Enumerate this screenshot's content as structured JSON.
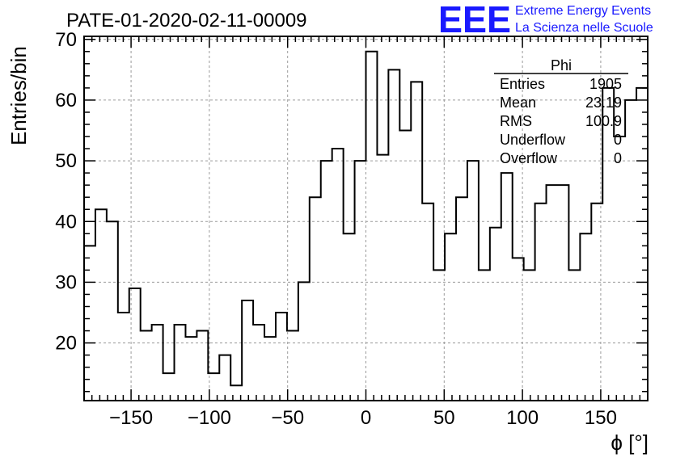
{
  "chart_data": {
    "type": "bar",
    "title": "PATE-01-2020-02-11-00009",
    "xlabel": "ϕ [°]",
    "ylabel": "Entries/bin",
    "xlim": [
      -180,
      180
    ],
    "ylim": [
      10.5,
      70.5
    ],
    "grid": true,
    "x_ticks": [
      -150,
      -100,
      -50,
      0,
      50,
      100,
      150
    ],
    "x_tick_labels": [
      "−150",
      "−100",
      "−50",
      "0",
      "50",
      "100",
      "150"
    ],
    "y_ticks": [
      20,
      30,
      40,
      50,
      60,
      70
    ],
    "y_tick_labels": [
      "20",
      "30",
      "40",
      "50",
      "60",
      "70"
    ],
    "bin_edges_start": -180,
    "bin_width": 7.2,
    "values": [
      36,
      42,
      40,
      25,
      29,
      22,
      23,
      15,
      23,
      21,
      22,
      15,
      18,
      13,
      27,
      23,
      21,
      25,
      22,
      30,
      44,
      50,
      52,
      38,
      50,
      68,
      51,
      65,
      55,
      63,
      43,
      32,
      38,
      44,
      50,
      32,
      39,
      48,
      34,
      32,
      43,
      46,
      46,
      32,
      38,
      43,
      62,
      54,
      60,
      62
    ],
    "stats_box": {
      "title": "Phi",
      "rows": [
        {
          "label": "Entries",
          "value": "1905"
        },
        {
          "label": "Mean",
          "value": "23.19"
        },
        {
          "label": "RMS",
          "value": "100.9"
        },
        {
          "label": "Underflow",
          "value": "0"
        },
        {
          "label": "Overflow",
          "value": "0"
        }
      ]
    }
  },
  "logo": {
    "mark": "EEE",
    "line1": "Extreme Energy Events",
    "line2": "La Scienza nelle Scuole"
  }
}
